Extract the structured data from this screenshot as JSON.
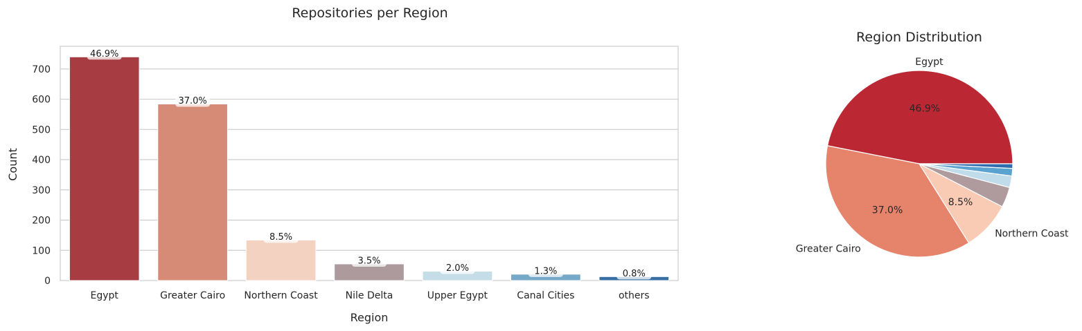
{
  "chart_data": [
    {
      "type": "bar",
      "title": "Repositories per Region",
      "xlabel": "Region",
      "ylabel": "Count",
      "categories": [
        "Egypt",
        "Greater Cairo",
        "Northern Coast",
        "Nile Delta",
        "Upper Egypt",
        "Canal Cities",
        "others"
      ],
      "values": [
        740,
        584,
        134,
        55,
        31,
        21,
        13
      ],
      "data_labels": [
        "46.9%",
        "37.0%",
        "8.5%",
        "3.5%",
        "2.0%",
        "1.3%",
        "0.8%"
      ],
      "colors": [
        "#a83c43",
        "#d68b77",
        "#f4d2c1",
        "#ad9a9c",
        "#c5dde7",
        "#75a9c7",
        "#3870a5"
      ],
      "ylim": [
        0,
        775
      ],
      "yticks": [
        0,
        100,
        200,
        300,
        400,
        500,
        600,
        700
      ],
      "grid": true
    },
    {
      "type": "pie",
      "title": "Region Distribution",
      "labels": [
        "Egypt",
        "Greater Cairo",
        "Northern Coast",
        "",
        "",
        "",
        ""
      ],
      "values": [
        46.9,
        37.0,
        8.5,
        3.5,
        2.0,
        1.3,
        0.8
      ],
      "pct_labels": [
        "46.9%",
        "37.0%",
        "8.5%",
        "",
        "",
        "",
        ""
      ],
      "colors": [
        "#bb2834",
        "#e5836b",
        "#f9cbb4",
        "#af9b9e",
        "#c0dceb",
        "#5aa2cf",
        "#2d6eaf"
      ]
    }
  ]
}
